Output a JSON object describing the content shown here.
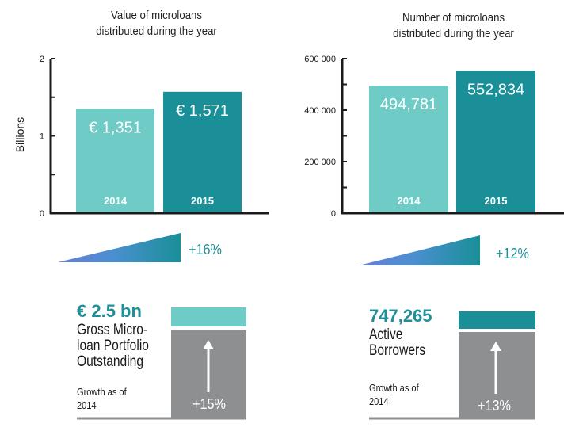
{
  "chart_data": [
    {
      "type": "bar",
      "title_lines": [
        "Value of microloans",
        "distributed during the year"
      ],
      "ylabel": "Billions",
      "ylim": [
        0,
        2
      ],
      "yticks": [
        "0",
        "1",
        "2"
      ],
      "categories": [
        "2014",
        "2015"
      ],
      "values": [
        1.351,
        1.571
      ],
      "data_labels": [
        "€ 1,351",
        "€ 1,571"
      ],
      "bar_colors": [
        "#6fcbc6",
        "#1a8f98"
      ]
    },
    {
      "type": "bar",
      "title_lines": [
        "Number of microloans",
        "distributed during the year"
      ],
      "ylabel": "",
      "ylim": [
        0,
        600000
      ],
      "yticks": [
        "0",
        "200 000",
        "400 000",
        "600 000"
      ],
      "categories": [
        "2014",
        "2015"
      ],
      "values": [
        494781,
        552834
      ],
      "data_labels": [
        "494,781",
        "552,834"
      ],
      "bar_colors": [
        "#6fcbc6",
        "#1a8f98"
      ]
    }
  ],
  "growth": [
    {
      "label": "+16%",
      "gradient": [
        "#4a8fd0",
        "#1a8f98"
      ]
    },
    {
      "label": "+12%",
      "gradient": [
        "#4a8fd0",
        "#1a8f98"
      ]
    }
  ],
  "metrics": [
    {
      "value": "€ 2.5 bn",
      "label_lines": [
        "Gross Micro-",
        "loan Portfolio",
        "Outstanding"
      ],
      "note_lines": [
        "Growth as of",
        "2014"
      ],
      "box_pct": "+15%",
      "cap_color": "#6fcbc6"
    },
    {
      "value": "747,265",
      "label_lines": [
        "Active",
        "Borrowers"
      ],
      "note_lines": [
        "Growth as of",
        "2014"
      ],
      "box_pct": "+13%",
      "cap_color": "#1a8f98"
    }
  ],
  "colors": {
    "gray_box": "#8e8f91",
    "axis": "#1a1a1a",
    "accent": "#1f8f99"
  }
}
